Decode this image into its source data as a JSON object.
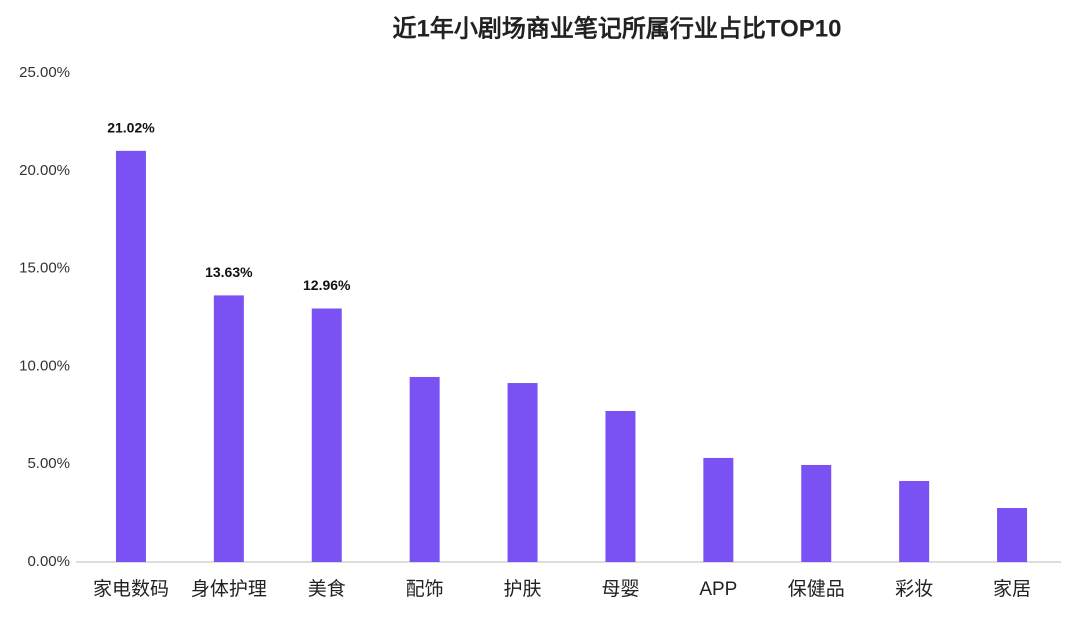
{
  "chart_data": {
    "type": "bar",
    "title": "近1年小剧场商业笔记所属行业占比TOP10",
    "categories": [
      "家电数码",
      "身体护理",
      "美食",
      "配饰",
      "护肤",
      "母婴",
      "APP",
      "保健品",
      "彩妆",
      "家居"
    ],
    "values": [
      21.02,
      13.63,
      12.96,
      9.46,
      9.15,
      7.72,
      5.32,
      4.96,
      4.14,
      2.76
    ],
    "value_labels": [
      "21.02%",
      "13.63%",
      "12.96%",
      null,
      null,
      null,
      null,
      null,
      null,
      null
    ],
    "color": "#7a52f4",
    "ylim": [
      0,
      25
    ],
    "yticks": [
      {
        "value": 0,
        "label": "0.00%"
      },
      {
        "value": 5,
        "label": "5.00%"
      },
      {
        "value": 10,
        "label": "10.00%"
      },
      {
        "value": 15,
        "label": "15.00%"
      },
      {
        "value": 20,
        "label": "20.00%"
      },
      {
        "value": 25,
        "label": "25.00%"
      }
    ],
    "grid": false
  }
}
